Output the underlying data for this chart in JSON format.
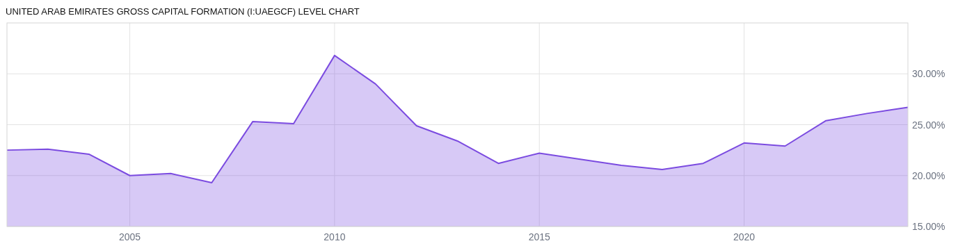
{
  "chart_data": {
    "type": "area",
    "title": "UNITED ARAB EMIRATES GROSS CAPITAL FORMATION (I:UAEGCF) LEVEL CHART",
    "x": [
      2002,
      2003,
      2004,
      2005,
      2006,
      2007,
      2008,
      2009,
      2010,
      2011,
      2012,
      2013,
      2014,
      2015,
      2016,
      2017,
      2018,
      2019,
      2020,
      2021,
      2022,
      2023,
      2024
    ],
    "series": [
      {
        "color": "#7b4be0",
        "values": [
          22.5,
          22.6,
          22.1,
          20.0,
          20.2,
          19.3,
          25.3,
          25.1,
          31.8,
          29.0,
          24.9,
          23.4,
          21.2,
          22.2,
          21.6,
          21.0,
          20.6,
          21.2,
          23.2,
          22.9,
          25.4,
          26.1,
          26.7
        ]
      }
    ],
    "xlim": [
      2002,
      2024
    ],
    "xticks": [
      2005,
      2010,
      2015,
      2020
    ],
    "ylim": [
      15,
      35
    ],
    "yticks": [
      {
        "value": 15,
        "label": "15.00%"
      },
      {
        "value": 20,
        "label": "20.00%"
      },
      {
        "value": 25,
        "label": "25.00%"
      },
      {
        "value": 30,
        "label": "30.00%"
      }
    ],
    "grid": true
  }
}
